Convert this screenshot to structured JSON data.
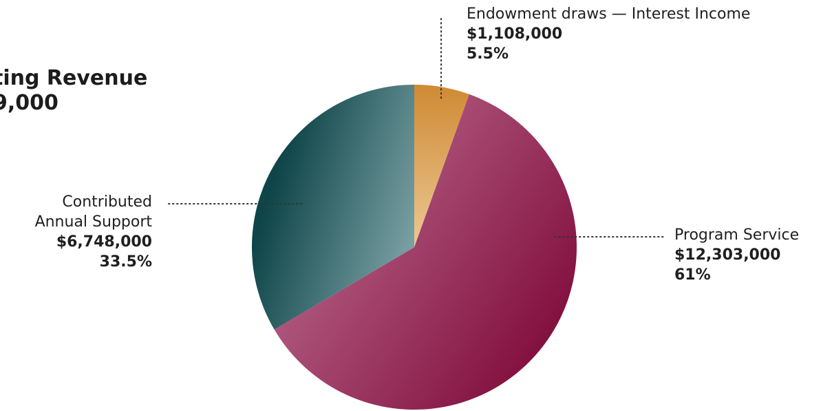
{
  "header": {
    "title_line1": "ting Revenue",
    "title_line2": "9,000"
  },
  "chart_data": {
    "type": "pie",
    "title": "",
    "start_angle_deg": 0,
    "direction": "clockwise",
    "slices": [
      {
        "label": "Endowment draws — Interest Income",
        "value": 1108000,
        "value_text": "$1,108,000",
        "percent": 5.5,
        "percent_text": "5.5%",
        "color_start": "#cf8a33",
        "color_end": "#ecc894"
      },
      {
        "label": "Program Service",
        "value": 12303000,
        "value_text": "$12,303,000",
        "percent": 61,
        "percent_text": "61%",
        "color_start": "#c07396",
        "color_end": "#7c0636"
      },
      {
        "label_lines": [
          "Contributed",
          "Annual Support"
        ],
        "value": 6748000,
        "value_text": "$6,748,000",
        "percent": 33.5,
        "percent_text": "33.5%",
        "color_start": "#0e4548",
        "color_end": "#80a5a9"
      }
    ],
    "legend": "none",
    "label_style": "dotted leader lines"
  }
}
